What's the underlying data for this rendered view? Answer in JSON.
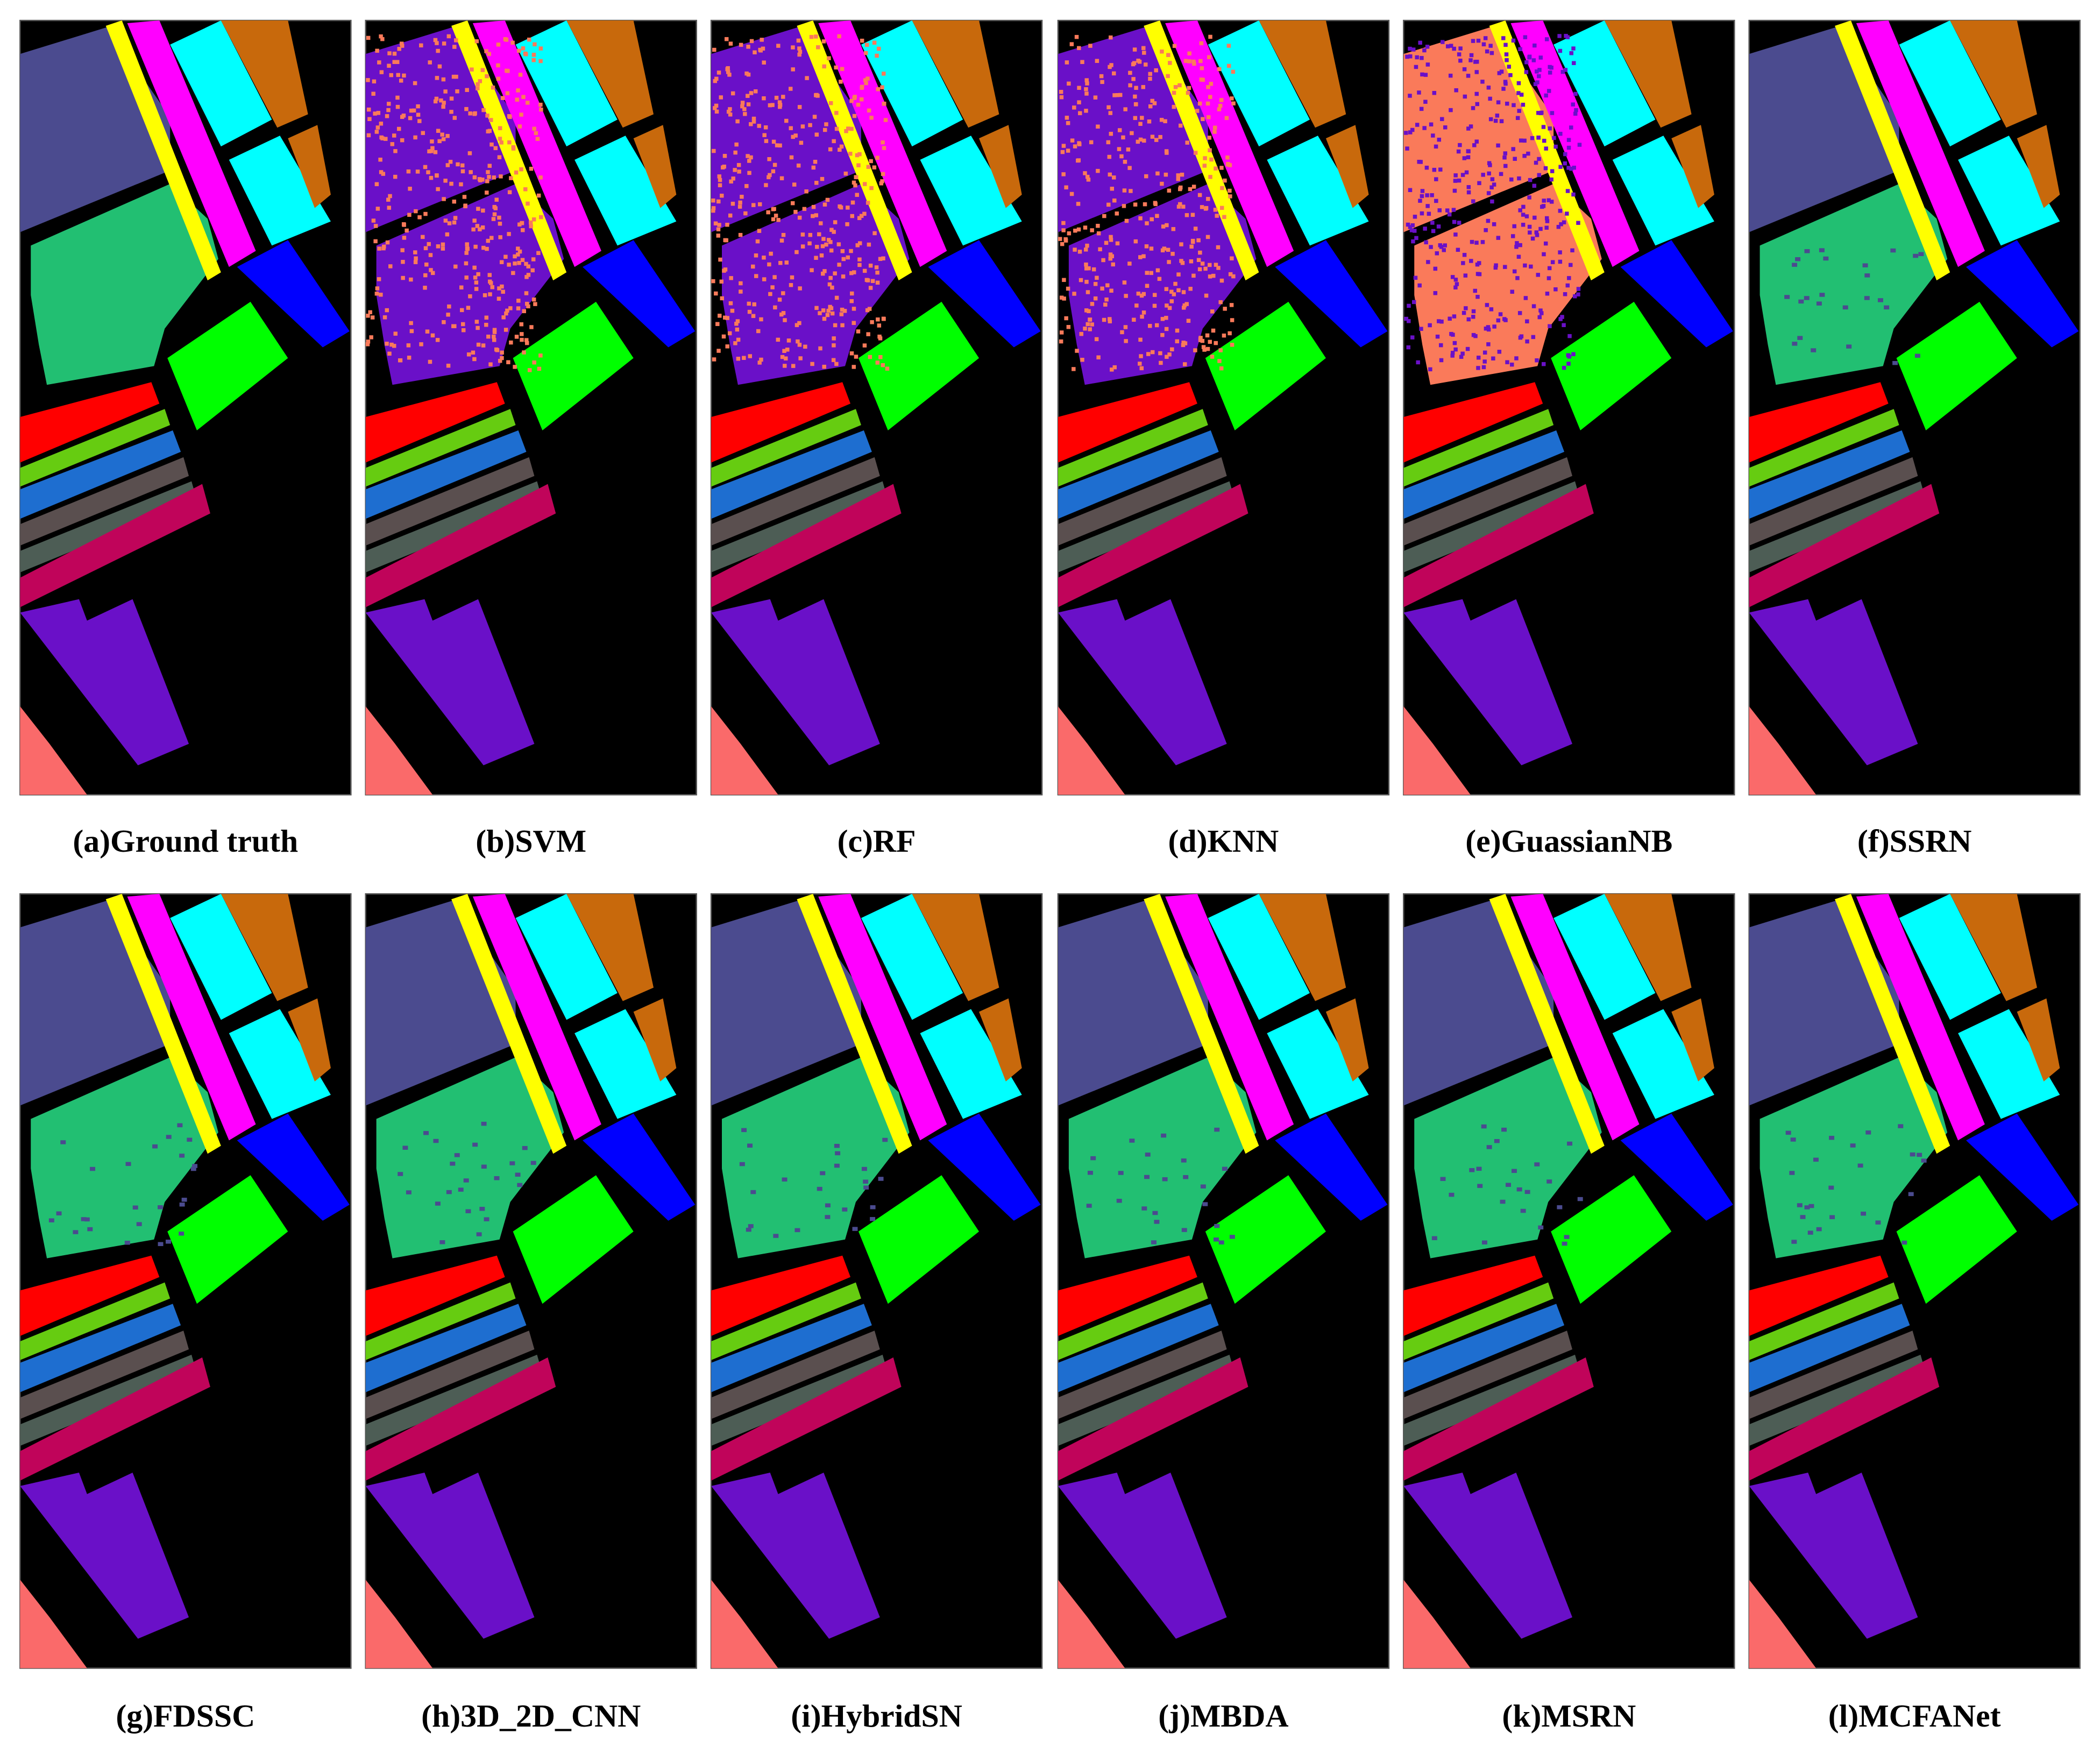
{
  "panels": [
    {
      "caption": "(a)Ground truth"
    },
    {
      "caption": "(b)SVM"
    },
    {
      "caption": "(c)RF"
    },
    {
      "caption": "(d)KNN"
    },
    {
      "caption": "(e)GuassianNB"
    },
    {
      "caption": "(f)SSRN"
    },
    {
      "caption": "(g)FDSSC"
    },
    {
      "caption": "(h)3D_2D_CNN"
    },
    {
      "caption": "(i)HybridSN"
    },
    {
      "caption": "(j)MBDA"
    },
    {
      "caption": "(k)MSRN"
    },
    {
      "caption": "(l)MCFANet"
    }
  ]
}
